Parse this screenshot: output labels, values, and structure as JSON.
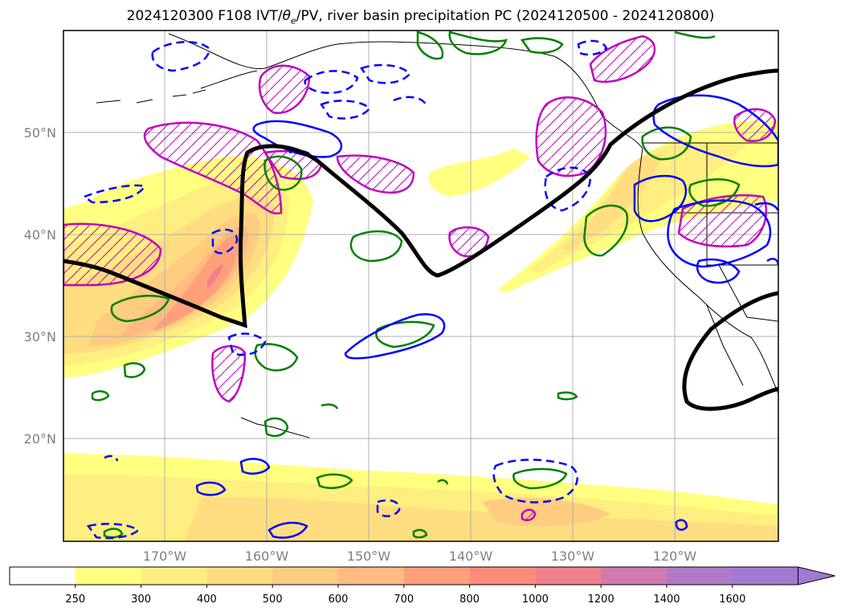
{
  "title_main": "2024120300 F108 IVT/",
  "title_theta": "θ",
  "title_theta_sub": "e",
  "title_rest": "/PV, river basin precipitation PC (2024120500 - 2024120800)",
  "lat_labels": [
    "50°N",
    "40°N",
    "30°N",
    "20°N"
  ],
  "lon_labels": [
    "170°W",
    "160°W",
    "150°W",
    "140°W",
    "130°W",
    "120°W"
  ],
  "colorbar": {
    "ticks": [
      "250",
      "300",
      "400",
      "500",
      "600",
      "700",
      "800",
      "1000",
      "1200",
      "1400",
      "1600"
    ],
    "colors": [
      "#ffffff",
      "#ffff80",
      "#ffee80",
      "#ffdd80",
      "#ffcc80",
      "#ffbb80",
      "#ffa07a",
      "#ff8c7a",
      "#f0808a",
      "#d07ab0",
      "#b07ac8",
      "#a07ad0"
    ]
  },
  "legend_colors": {
    "theta_e_contour": "#0000ff",
    "pv_contour": "#008000",
    "precip_hatch": "#c000c0",
    "ivt_thick_line": "#000000"
  }
}
